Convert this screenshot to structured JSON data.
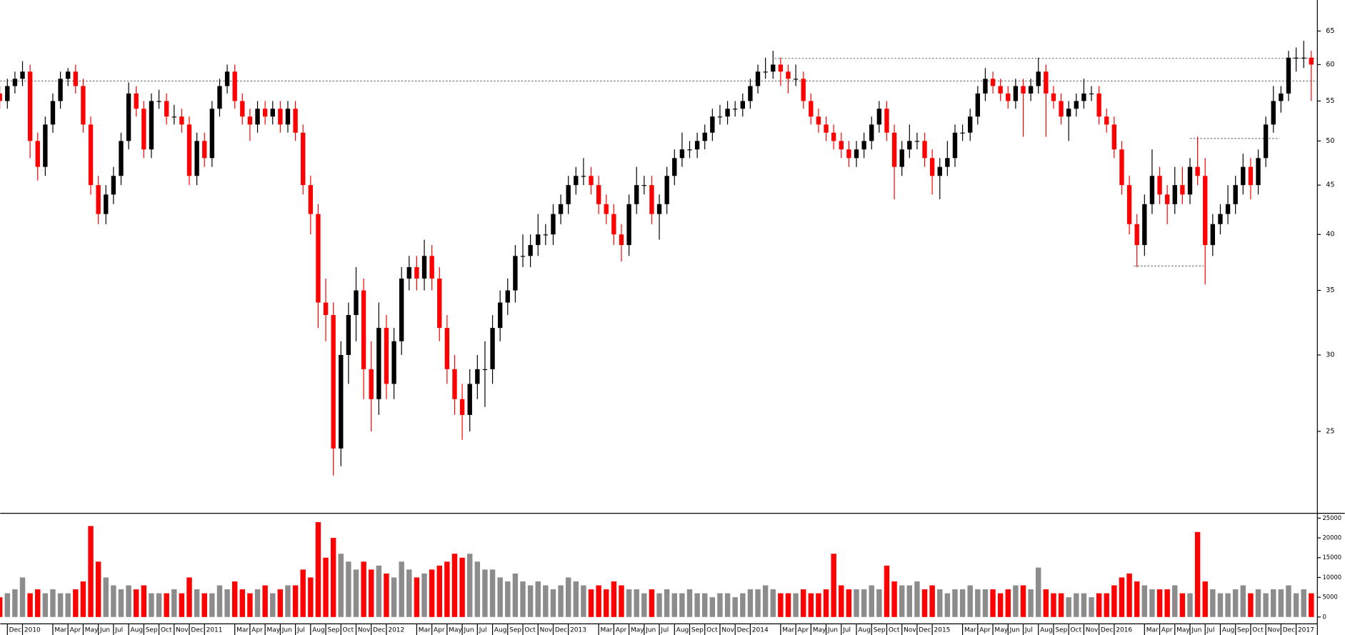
{
  "chart_data": {
    "type": "candlestick",
    "log_scale": true,
    "up_color": "#000000",
    "down_color": "#ff0000",
    "volume_up_color": "#8c8c8c",
    "volume_down_color": "#ff0000",
    "x": [
      -1.5,
      -1,
      -0.5,
      0,
      0.5,
      1,
      1.5,
      2,
      2.5,
      3,
      3.5,
      4,
      4.5,
      5,
      5.5,
      6,
      6.5,
      7,
      7.5,
      8,
      8.5,
      9,
      9.5,
      10,
      10.5,
      11,
      11.5,
      12,
      12.5,
      13,
      13.5,
      14,
      14.5,
      15,
      15.5,
      16,
      16.5,
      17,
      17.5,
      18,
      18.5,
      19,
      19.5,
      20,
      20.5,
      21,
      21.5,
      22,
      22.5,
      23,
      23.5,
      24,
      24.5,
      25,
      25.5,
      26,
      26.5,
      27,
      27.5,
      28,
      28.5,
      29,
      29.5,
      30,
      30.5,
      31,
      31.5,
      32,
      32.5,
      33,
      33.5,
      34,
      34.5,
      35,
      35.5,
      36,
      36.5,
      37,
      37.5,
      38,
      38.5,
      39,
      39.5,
      40,
      40.5,
      41,
      41.5,
      42,
      42.5,
      43,
      43.5,
      44,
      44.5,
      45,
      45.5,
      46,
      46.5,
      47,
      47.5,
      48,
      48.5,
      49,
      49.5,
      50,
      50.5,
      51,
      51.5,
      52,
      52.5,
      53,
      53.5,
      54,
      54.5,
      55,
      55.5,
      56,
      56.5,
      57,
      57.5,
      58,
      58.5,
      59,
      59.5,
      60,
      60.5,
      61,
      61.5,
      62,
      62.5,
      63,
      63.5,
      64,
      64.5,
      65,
      65.5,
      66,
      66.5,
      67,
      67.5,
      68,
      68.5,
      69,
      69.5,
      70,
      70.5,
      71,
      71.5,
      72,
      72.5,
      73,
      73.5,
      74,
      74.5,
      75,
      75.5,
      76,
      76.5,
      77,
      77.5,
      78,
      78.5,
      79,
      79.5,
      80,
      80.5,
      81,
      81.5,
      82,
      82.5,
      83,
      83.5,
      84,
      84.5,
      85
    ],
    "open": [
      56,
      55,
      57,
      58,
      59,
      50,
      47,
      52,
      55,
      58,
      59,
      57,
      52,
      45,
      42,
      44,
      46,
      50,
      56,
      54,
      49,
      55,
      55,
      53,
      53,
      52,
      46,
      50,
      48,
      54,
      57,
      59,
      55,
      53,
      52,
      54,
      53,
      54,
      52,
      54,
      51,
      45,
      42,
      34,
      33,
      24,
      30,
      33,
      35,
      29,
      27,
      32,
      28,
      31,
      36,
      37,
      36,
      38,
      36,
      32,
      29,
      27,
      26,
      28,
      29,
      29,
      32,
      34,
      35,
      38,
      38,
      39,
      40,
      40,
      42,
      43,
      45,
      46,
      46,
      45,
      43,
      42,
      40,
      39,
      43,
      45,
      45,
      42,
      43,
      46,
      48,
      49,
      49,
      50,
      51,
      53,
      53,
      54,
      54,
      55,
      57,
      59,
      59,
      60,
      59,
      58,
      58,
      55,
      53,
      52,
      51,
      50,
      49,
      48,
      49,
      50,
      52,
      54,
      51,
      47,
      49,
      50,
      50,
      48,
      46,
      47,
      48,
      51,
      51,
      53,
      56,
      58,
      57,
      56,
      55,
      57,
      56,
      57,
      59,
      56,
      55,
      53,
      54,
      55,
      56,
      56,
      53,
      52,
      49,
      45,
      41,
      39,
      43,
      46,
      44,
      43,
      45,
      44,
      47,
      46,
      39,
      41,
      42,
      43,
      45,
      47,
      45,
      48,
      52,
      55,
      56,
      61,
      61,
      61
    ],
    "high": [
      57,
      58,
      59,
      60.5,
      60,
      51,
      53,
      56,
      59,
      59.5,
      60,
      58,
      53,
      46,
      45,
      47,
      51,
      57.5,
      57,
      55,
      56,
      56.5,
      56,
      54.5,
      54,
      53,
      51,
      51,
      55,
      58,
      60,
      60,
      56,
      54,
      55,
      55,
      55,
      55,
      55,
      55,
      52,
      46,
      43,
      36,
      34,
      31,
      34,
      37,
      36,
      31,
      34,
      33,
      32,
      37,
      38,
      38,
      39.5,
      39,
      37,
      33,
      30,
      28,
      29,
      30,
      31,
      33,
      35,
      36,
      39,
      40,
      40,
      42,
      41,
      43,
      44,
      46,
      47,
      48,
      47,
      46,
      44,
      43,
      41,
      44,
      47,
      46,
      46,
      44,
      47,
      49,
      51,
      50,
      51,
      52,
      54,
      54.5,
      55,
      55,
      56,
      58,
      60,
      61,
      62,
      61,
      60,
      60,
      59,
      56,
      54,
      53,
      52,
      51,
      50,
      50,
      51,
      53,
      55,
      55,
      52,
      50,
      52,
      51,
      51,
      49,
      48,
      50,
      52,
      52,
      54,
      57,
      59.5,
      59,
      58,
      57,
      58,
      58,
      58,
      61,
      60,
      57,
      56,
      55,
      56,
      58,
      57,
      57,
      54,
      53,
      50,
      46,
      42,
      44,
      49,
      47,
      45,
      47,
      47,
      48,
      50.5,
      48,
      42,
      43,
      45,
      46,
      48.5,
      48,
      49,
      53,
      57,
      57,
      62,
      62.5,
      63.5,
      62
    ],
    "low": [
      54,
      54,
      56,
      57,
      48,
      45.5,
      46,
      51,
      54,
      57,
      56,
      51,
      44,
      41,
      41,
      43,
      45,
      49,
      53,
      48,
      48,
      54,
      52,
      52,
      51,
      45,
      45,
      47,
      47,
      53,
      56,
      54,
      52,
      50,
      51,
      52,
      52,
      51,
      51,
      50,
      44,
      40,
      32,
      31,
      22.5,
      23,
      28,
      31,
      27,
      25,
      26,
      27,
      27,
      30,
      35,
      35,
      35,
      35,
      31,
      28,
      26,
      24.5,
      25,
      27,
      26.5,
      28,
      31,
      33,
      34,
      37,
      37,
      38,
      39,
      39,
      41,
      42,
      44,
      45,
      44,
      42,
      41,
      39,
      37.5,
      38,
      42,
      44,
      41,
      39.5,
      42,
      45,
      47,
      48,
      48,
      49,
      50,
      52,
      52,
      53,
      53,
      54,
      56,
      58,
      58,
      57,
      56,
      57,
      54,
      52,
      51,
      50,
      49,
      48,
      47,
      47,
      48,
      49,
      51,
      50,
      43.5,
      46,
      48,
      49,
      47,
      44,
      43.5,
      46,
      47,
      50,
      50,
      52,
      55,
      56,
      55,
      54,
      54,
      50.5,
      55,
      56,
      50.5,
      54,
      52,
      50,
      53,
      54,
      55,
      52,
      51,
      48,
      44,
      40,
      37,
      38,
      42,
      43,
      41,
      42,
      43,
      43,
      45,
      35.5,
      38,
      40,
      41,
      42,
      44,
      43.5,
      44,
      47,
      51,
      53.5,
      55,
      59,
      59.5,
      55
    ],
    "close": [
      55,
      57,
      58,
      59,
      50,
      47,
      52,
      55,
      58,
      59,
      57,
      52,
      45,
      42,
      44,
      46,
      50,
      56,
      54,
      49,
      55,
      55,
      53,
      53,
      52,
      46,
      50,
      48,
      54,
      57,
      59,
      55,
      53,
      52,
      54,
      53,
      54,
      52,
      54,
      51,
      45,
      42,
      34,
      33,
      24,
      30,
      33,
      35,
      29,
      27,
      32,
      28,
      31,
      36,
      37,
      36,
      38,
      36,
      32,
      29,
      27,
      26,
      28,
      29,
      29,
      32,
      34,
      35,
      38,
      38,
      39,
      40,
      40,
      42,
      43,
      45,
      46,
      46,
      45,
      43,
      42,
      40,
      39,
      43,
      45,
      45,
      42,
      43,
      46,
      48,
      49,
      49,
      50,
      51,
      53,
      53,
      54,
      54,
      55,
      57,
      59,
      59,
      60,
      59,
      58,
      58,
      55,
      53,
      52,
      51,
      50,
      49,
      48,
      49,
      50,
      52,
      54,
      51,
      47,
      49,
      50,
      50,
      48,
      46,
      47,
      48,
      51,
      51,
      53,
      56,
      58,
      57,
      56,
      55,
      57,
      56,
      57,
      59,
      56,
      55,
      53,
      54,
      55,
      56,
      56,
      53,
      52,
      49,
      45,
      41,
      39,
      43,
      46,
      44,
      43,
      45,
      44,
      47,
      46,
      39,
      41,
      42,
      43,
      45,
      47,
      45,
      48,
      52,
      55,
      56,
      61,
      61,
      61,
      60
    ],
    "volume": [
      5000,
      6000,
      7000,
      10000,
      6000,
      7000,
      6000,
      7000,
      6000,
      6000,
      7000,
      9000,
      23000,
      14000,
      10000,
      8000,
      7000,
      8000,
      7000,
      8000,
      6000,
      6000,
      6000,
      7000,
      6000,
      10000,
      7000,
      6000,
      6000,
      8000,
      7000,
      9000,
      7000,
      6000,
      7000,
      8000,
      6000,
      7000,
      8000,
      8000,
      12000,
      10000,
      24000,
      15000,
      20000,
      16000,
      14000,
      12000,
      14000,
      12000,
      13000,
      11000,
      10000,
      14000,
      12000,
      10000,
      11000,
      12000,
      13000,
      14000,
      16000,
      15000,
      16000,
      14000,
      12000,
      12000,
      10000,
      9000,
      11000,
      9000,
      8000,
      9000,
      8000,
      7000,
      8000,
      10000,
      9000,
      8000,
      7000,
      8000,
      7000,
      9000,
      8000,
      7000,
      7000,
      6000,
      7000,
      6000,
      7000,
      6000,
      6000,
      7000,
      6000,
      6000,
      5000,
      6000,
      6000,
      5000,
      6000,
      7000,
      7000,
      8000,
      7000,
      6000,
      6000,
      6000,
      7000,
      6000,
      6000,
      7000,
      16000,
      8000,
      7000,
      7000,
      7000,
      8000,
      7000,
      13000,
      9000,
      8000,
      8000,
      9000,
      7000,
      8000,
      7000,
      6000,
      7000,
      7000,
      8000,
      7000,
      7000,
      7000,
      6000,
      7000,
      8000,
      8000,
      7000,
      12500,
      7000,
      6000,
      6000,
      5000,
      6000,
      6000,
      5000,
      6000,
      6000,
      8000,
      10000,
      11000,
      9000,
      8000,
      7000,
      7000,
      7000,
      8000,
      6000,
      6000,
      21500,
      9000,
      7000,
      6000,
      6000,
      7000,
      8000,
      6000,
      7000,
      6000,
      7000,
      7000,
      8000,
      6000,
      7000,
      6000
    ],
    "xlim": [
      -1.47,
      85.4
    ],
    "ylim": [
      20.6,
      70
    ],
    "yticks": [
      25,
      30,
      35,
      40,
      45,
      50,
      55,
      60,
      65
    ],
    "volume_ylim": [
      0,
      26000
    ],
    "volume_yticks": [
      0,
      5000,
      10000,
      15000,
      20000,
      25000
    ],
    "reference_lines": [
      {
        "value": 57.7,
        "x": [
          -1.47,
          85.4
        ]
      },
      {
        "value": 60.9,
        "x": [
          49.6,
          85.4
        ]
      },
      {
        "value": 50.3,
        "x": [
          77,
          82.9
        ]
      },
      {
        "value": 37.1,
        "x": [
          73.3,
          77.9
        ]
      }
    ],
    "xticks": [
      {
        "value": -1,
        "label": "Dec"
      },
      {
        "value": 0,
        "label": "2010"
      },
      {
        "value": 2,
        "label": "Mar"
      },
      {
        "value": 3,
        "label": "Apr"
      },
      {
        "value": 4,
        "label": "May"
      },
      {
        "value": 5,
        "label": "Jun"
      },
      {
        "value": 6,
        "label": "Jul"
      },
      {
        "value": 7,
        "label": "Aug"
      },
      {
        "value": 8,
        "label": "Sep"
      },
      {
        "value": 9,
        "label": "Oct"
      },
      {
        "value": 10,
        "label": "Nov"
      },
      {
        "value": 11,
        "label": "Dec"
      },
      {
        "value": 12,
        "label": "2011"
      },
      {
        "value": 14,
        "label": "Mar"
      },
      {
        "value": 15,
        "label": "Apr"
      },
      {
        "value": 16,
        "label": "May"
      },
      {
        "value": 17,
        "label": "Jun"
      },
      {
        "value": 18,
        "label": "Jul"
      },
      {
        "value": 19,
        "label": "Aug"
      },
      {
        "value": 20,
        "label": "Sep"
      },
      {
        "value": 21,
        "label": "Oct"
      },
      {
        "value": 22,
        "label": "Nov"
      },
      {
        "value": 23,
        "label": "Dec"
      },
      {
        "value": 24,
        "label": "2012"
      },
      {
        "value": 26,
        "label": "Mar"
      },
      {
        "value": 27,
        "label": "Apr"
      },
      {
        "value": 28,
        "label": "May"
      },
      {
        "value": 29,
        "label": "Jun"
      },
      {
        "value": 30,
        "label": "Jul"
      },
      {
        "value": 31,
        "label": "Aug"
      },
      {
        "value": 32,
        "label": "Sep"
      },
      {
        "value": 33,
        "label": "Oct"
      },
      {
        "value": 34,
        "label": "Nov"
      },
      {
        "value": 35,
        "label": "Dec"
      },
      {
        "value": 36,
        "label": "2013"
      },
      {
        "value": 38,
        "label": "Mar"
      },
      {
        "value": 39,
        "label": "Apr"
      },
      {
        "value": 40,
        "label": "May"
      },
      {
        "value": 41,
        "label": "Jun"
      },
      {
        "value": 42,
        "label": "Jul"
      },
      {
        "value": 43,
        "label": "Aug"
      },
      {
        "value": 44,
        "label": "Sep"
      },
      {
        "value": 45,
        "label": "Oct"
      },
      {
        "value": 46,
        "label": "Nov"
      },
      {
        "value": 47,
        "label": "Dec"
      },
      {
        "value": 48,
        "label": "2014"
      },
      {
        "value": 50,
        "label": "Mar"
      },
      {
        "value": 51,
        "label": "Apr"
      },
      {
        "value": 52,
        "label": "May"
      },
      {
        "value": 53,
        "label": "Jun"
      },
      {
        "value": 54,
        "label": "Jul"
      },
      {
        "value": 55,
        "label": "Aug"
      },
      {
        "value": 56,
        "label": "Sep"
      },
      {
        "value": 57,
        "label": "Oct"
      },
      {
        "value": 58,
        "label": "Nov"
      },
      {
        "value": 59,
        "label": "Dec"
      },
      {
        "value": 60,
        "label": "2015"
      },
      {
        "value": 62,
        "label": "Mar"
      },
      {
        "value": 63,
        "label": "Apr"
      },
      {
        "value": 64,
        "label": "May"
      },
      {
        "value": 65,
        "label": "Jun"
      },
      {
        "value": 66,
        "label": "Jul"
      },
      {
        "value": 67,
        "label": "Aug"
      },
      {
        "value": 68,
        "label": "Sep"
      },
      {
        "value": 69,
        "label": "Oct"
      },
      {
        "value": 70,
        "label": "Nov"
      },
      {
        "value": 71,
        "label": "Dec"
      },
      {
        "value": 72,
        "label": "2016"
      },
      {
        "value": 74,
        "label": "Mar"
      },
      {
        "value": 75,
        "label": "Apr"
      },
      {
        "value": 76,
        "label": "May"
      },
      {
        "value": 77,
        "label": "Jun"
      },
      {
        "value": 78,
        "label": "Jul"
      },
      {
        "value": 79,
        "label": "Aug"
      },
      {
        "value": 80,
        "label": "Sep"
      },
      {
        "value": 81,
        "label": "Oct"
      },
      {
        "value": 82,
        "label": "Nov"
      },
      {
        "value": 83,
        "label": "Dec"
      },
      {
        "value": 84,
        "label": "2017"
      }
    ]
  }
}
